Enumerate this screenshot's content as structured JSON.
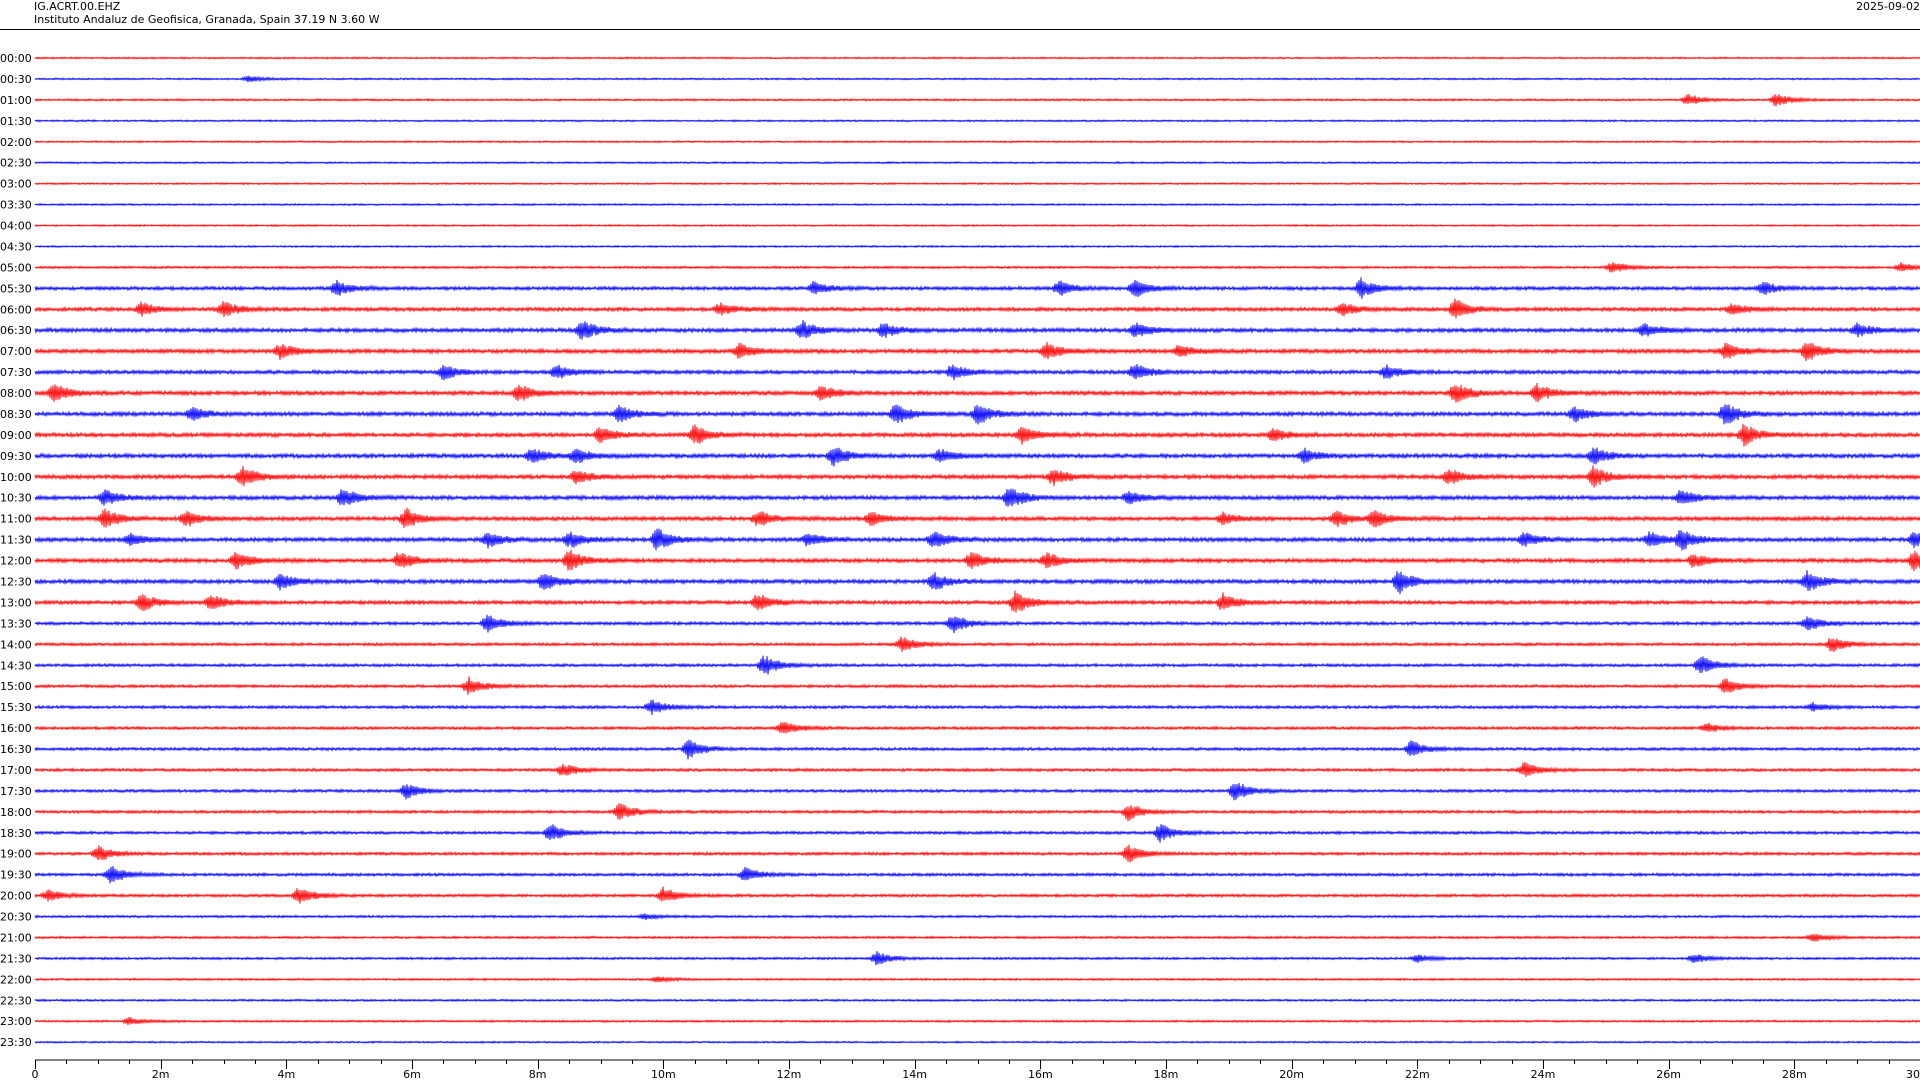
{
  "header": {
    "station": "IG.ACRT.00.EHZ",
    "institute": "Instituto Andaluz de Geofisica, Granada, Spain  37.19 N 3.60 W",
    "date": "2025-09-02"
  },
  "chart_data": {
    "type": "line",
    "chart_kind": "helicorder",
    "row_labels": [
      "00:00",
      "00:30",
      "01:00",
      "01:30",
      "02:00",
      "02:30",
      "03:00",
      "03:30",
      "04:00",
      "04:30",
      "05:00",
      "05:30",
      "06:00",
      "06:30",
      "07:00",
      "07:30",
      "08:00",
      "08:30",
      "09:00",
      "09:30",
      "10:00",
      "10:30",
      "11:00",
      "11:30",
      "12:00",
      "12:30",
      "13:00",
      "13:30",
      "14:00",
      "14:30",
      "15:00",
      "15:30",
      "16:00",
      "16:30",
      "17:00",
      "17:30",
      "18:00",
      "18:30",
      "19:00",
      "19:30",
      "20:00",
      "20:30",
      "21:00",
      "21:30",
      "22:00",
      "22:30",
      "23:00",
      "23:30"
    ],
    "row_colors": [
      "#ff0000",
      "#0000ff"
    ],
    "x_tick_labels": [
      "0",
      "2m",
      "4m",
      "6m",
      "8m",
      "10m",
      "12m",
      "14m",
      "16m",
      "18m",
      "20m",
      "22m",
      "24m",
      "26m",
      "28m",
      "30"
    ],
    "xlim": [
      0,
      30
    ],
    "x_minor_step": 0.5,
    "row_amplitude": [
      0.6,
      0.6,
      0.7,
      0.6,
      0.6,
      0.6,
      0.6,
      0.6,
      0.6,
      0.6,
      0.8,
      1.2,
      1.3,
      1.4,
      1.4,
      1.3,
      1.4,
      1.4,
      1.4,
      1.4,
      1.4,
      1.4,
      1.4,
      1.4,
      1.4,
      1.4,
      1.3,
      1.1,
      1.0,
      1.0,
      1.0,
      1.0,
      1.0,
      1.0,
      1.0,
      1.0,
      1.0,
      1.0,
      1.0,
      1.0,
      1.0,
      0.8,
      0.8,
      0.8,
      0.7,
      0.7,
      0.7,
      0.6
    ],
    "events": [
      {
        "row": 1,
        "t": 3.4,
        "a": 3
      },
      {
        "row": 2,
        "t": 26.3,
        "a": 6
      },
      {
        "row": 2,
        "t": 27.7,
        "a": 7
      },
      {
        "row": 10,
        "t": 25.1,
        "a": 6
      },
      {
        "row": 10,
        "t": 29.7,
        "a": 5
      },
      {
        "row": 11,
        "t": 4.8,
        "a": 8
      },
      {
        "row": 11,
        "t": 12.4,
        "a": 7
      },
      {
        "row": 11,
        "t": 16.3,
        "a": 8
      },
      {
        "row": 11,
        "t": 17.5,
        "a": 9
      },
      {
        "row": 11,
        "t": 21.1,
        "a": 10
      },
      {
        "row": 11,
        "t": 27.5,
        "a": 7
      },
      {
        "row": 12,
        "t": 1.7,
        "a": 7
      },
      {
        "row": 12,
        "t": 3.0,
        "a": 8
      },
      {
        "row": 12,
        "t": 10.9,
        "a": 6
      },
      {
        "row": 12,
        "t": 20.8,
        "a": 7
      },
      {
        "row": 12,
        "t": 22.6,
        "a": 10
      },
      {
        "row": 12,
        "t": 27.0,
        "a": 6
      },
      {
        "row": 13,
        "t": 8.7,
        "a": 11
      },
      {
        "row": 13,
        "t": 12.2,
        "a": 10
      },
      {
        "row": 13,
        "t": 13.5,
        "a": 8
      },
      {
        "row": 13,
        "t": 17.5,
        "a": 8
      },
      {
        "row": 13,
        "t": 25.6,
        "a": 7
      },
      {
        "row": 13,
        "t": 29.0,
        "a": 7
      },
      {
        "row": 14,
        "t": 3.9,
        "a": 8
      },
      {
        "row": 14,
        "t": 11.2,
        "a": 8
      },
      {
        "row": 14,
        "t": 16.1,
        "a": 9
      },
      {
        "row": 14,
        "t": 18.2,
        "a": 6
      },
      {
        "row": 14,
        "t": 26.9,
        "a": 8
      },
      {
        "row": 14,
        "t": 28.2,
        "a": 10
      },
      {
        "row": 15,
        "t": 6.5,
        "a": 8
      },
      {
        "row": 15,
        "t": 8.3,
        "a": 7
      },
      {
        "row": 15,
        "t": 14.6,
        "a": 8
      },
      {
        "row": 15,
        "t": 17.5,
        "a": 9
      },
      {
        "row": 15,
        "t": 21.5,
        "a": 7
      },
      {
        "row": 16,
        "t": 0.3,
        "a": 10
      },
      {
        "row": 16,
        "t": 7.7,
        "a": 9
      },
      {
        "row": 16,
        "t": 12.5,
        "a": 8
      },
      {
        "row": 16,
        "t": 22.6,
        "a": 11
      },
      {
        "row": 16,
        "t": 23.9,
        "a": 9
      },
      {
        "row": 17,
        "t": 2.5,
        "a": 7
      },
      {
        "row": 17,
        "t": 9.3,
        "a": 9
      },
      {
        "row": 17,
        "t": 13.7,
        "a": 11
      },
      {
        "row": 17,
        "t": 15.0,
        "a": 11
      },
      {
        "row": 17,
        "t": 24.5,
        "a": 8
      },
      {
        "row": 17,
        "t": 26.9,
        "a": 12
      },
      {
        "row": 18,
        "t": 9.0,
        "a": 9
      },
      {
        "row": 18,
        "t": 10.5,
        "a": 10
      },
      {
        "row": 18,
        "t": 15.7,
        "a": 9
      },
      {
        "row": 18,
        "t": 19.7,
        "a": 6
      },
      {
        "row": 18,
        "t": 27.2,
        "a": 11
      },
      {
        "row": 19,
        "t": 7.9,
        "a": 8
      },
      {
        "row": 19,
        "t": 8.6,
        "a": 8
      },
      {
        "row": 19,
        "t": 12.7,
        "a": 10
      },
      {
        "row": 19,
        "t": 14.4,
        "a": 7
      },
      {
        "row": 19,
        "t": 20.2,
        "a": 7
      },
      {
        "row": 19,
        "t": 24.8,
        "a": 9
      },
      {
        "row": 20,
        "t": 3.3,
        "a": 11
      },
      {
        "row": 20,
        "t": 8.6,
        "a": 7
      },
      {
        "row": 20,
        "t": 16.2,
        "a": 9
      },
      {
        "row": 20,
        "t": 22.5,
        "a": 8
      },
      {
        "row": 20,
        "t": 24.8,
        "a": 11
      },
      {
        "row": 21,
        "t": 1.1,
        "a": 8
      },
      {
        "row": 21,
        "t": 4.9,
        "a": 10
      },
      {
        "row": 21,
        "t": 15.5,
        "a": 12
      },
      {
        "row": 21,
        "t": 17.4,
        "a": 7
      },
      {
        "row": 21,
        "t": 26.2,
        "a": 8
      },
      {
        "row": 22,
        "t": 1.1,
        "a": 10
      },
      {
        "row": 22,
        "t": 2.4,
        "a": 8
      },
      {
        "row": 22,
        "t": 5.9,
        "a": 11
      },
      {
        "row": 22,
        "t": 11.5,
        "a": 8
      },
      {
        "row": 22,
        "t": 13.3,
        "a": 7
      },
      {
        "row": 22,
        "t": 18.9,
        "a": 6
      },
      {
        "row": 22,
        "t": 20.7,
        "a": 9
      },
      {
        "row": 22,
        "t": 21.3,
        "a": 9
      },
      {
        "row": 23,
        "t": 1.5,
        "a": 6
      },
      {
        "row": 23,
        "t": 7.2,
        "a": 8
      },
      {
        "row": 23,
        "t": 8.5,
        "a": 9
      },
      {
        "row": 23,
        "t": 9.9,
        "a": 12
      },
      {
        "row": 23,
        "t": 12.3,
        "a": 7
      },
      {
        "row": 23,
        "t": 14.3,
        "a": 9
      },
      {
        "row": 23,
        "t": 23.7,
        "a": 8
      },
      {
        "row": 23,
        "t": 25.7,
        "a": 8
      },
      {
        "row": 23,
        "t": 26.2,
        "a": 11
      },
      {
        "row": 23,
        "t": 29.9,
        "a": 8
      },
      {
        "row": 24,
        "t": 3.2,
        "a": 9
      },
      {
        "row": 24,
        "t": 5.8,
        "a": 9
      },
      {
        "row": 24,
        "t": 8.5,
        "a": 11
      },
      {
        "row": 24,
        "t": 14.9,
        "a": 9
      },
      {
        "row": 24,
        "t": 16.1,
        "a": 8
      },
      {
        "row": 24,
        "t": 26.4,
        "a": 7
      },
      {
        "row": 24,
        "t": 29.9,
        "a": 10
      },
      {
        "row": 25,
        "t": 3.9,
        "a": 8
      },
      {
        "row": 25,
        "t": 8.1,
        "a": 10
      },
      {
        "row": 25,
        "t": 14.3,
        "a": 9
      },
      {
        "row": 25,
        "t": 21.7,
        "a": 12
      },
      {
        "row": 25,
        "t": 28.2,
        "a": 11
      },
      {
        "row": 26,
        "t": 1.7,
        "a": 9
      },
      {
        "row": 26,
        "t": 2.8,
        "a": 8
      },
      {
        "row": 26,
        "t": 11.5,
        "a": 9
      },
      {
        "row": 26,
        "t": 15.6,
        "a": 12
      },
      {
        "row": 26,
        "t": 18.9,
        "a": 9
      },
      {
        "row": 27,
        "t": 7.2,
        "a": 9
      },
      {
        "row": 27,
        "t": 14.6,
        "a": 10
      },
      {
        "row": 27,
        "t": 28.2,
        "a": 8
      },
      {
        "row": 28,
        "t": 13.8,
        "a": 8
      },
      {
        "row": 28,
        "t": 28.6,
        "a": 8
      },
      {
        "row": 29,
        "t": 11.6,
        "a": 11
      },
      {
        "row": 29,
        "t": 26.5,
        "a": 10
      },
      {
        "row": 30,
        "t": 6.9,
        "a": 9
      },
      {
        "row": 30,
        "t": 26.9,
        "a": 8
      },
      {
        "row": 31,
        "t": 9.8,
        "a": 8
      },
      {
        "row": 31,
        "t": 28.3,
        "a": 4
      },
      {
        "row": 32,
        "t": 11.9,
        "a": 7
      },
      {
        "row": 32,
        "t": 26.6,
        "a": 5
      },
      {
        "row": 33,
        "t": 10.4,
        "a": 10
      },
      {
        "row": 33,
        "t": 21.9,
        "a": 9
      },
      {
        "row": 34,
        "t": 8.4,
        "a": 7
      },
      {
        "row": 34,
        "t": 23.7,
        "a": 8
      },
      {
        "row": 35,
        "t": 5.9,
        "a": 8
      },
      {
        "row": 35,
        "t": 19.1,
        "a": 11
      },
      {
        "row": 36,
        "t": 9.3,
        "a": 9
      },
      {
        "row": 36,
        "t": 17.4,
        "a": 9
      },
      {
        "row": 37,
        "t": 8.2,
        "a": 9
      },
      {
        "row": 37,
        "t": 17.9,
        "a": 9
      },
      {
        "row": 38,
        "t": 1.0,
        "a": 8
      },
      {
        "row": 38,
        "t": 17.4,
        "a": 9
      },
      {
        "row": 39,
        "t": 1.2,
        "a": 10
      },
      {
        "row": 39,
        "t": 11.3,
        "a": 8
      },
      {
        "row": 40,
        "t": 0.2,
        "a": 6
      },
      {
        "row": 40,
        "t": 4.2,
        "a": 9
      },
      {
        "row": 40,
        "t": 10.0,
        "a": 8
      },
      {
        "row": 41,
        "t": 9.7,
        "a": 3
      },
      {
        "row": 42,
        "t": 28.3,
        "a": 4
      },
      {
        "row": 43,
        "t": 13.4,
        "a": 7
      },
      {
        "row": 43,
        "t": 22.0,
        "a": 4
      },
      {
        "row": 43,
        "t": 26.4,
        "a": 5
      },
      {
        "row": 44,
        "t": 9.9,
        "a": 3
      },
      {
        "row": 46,
        "t": 1.5,
        "a": 4
      }
    ]
  }
}
